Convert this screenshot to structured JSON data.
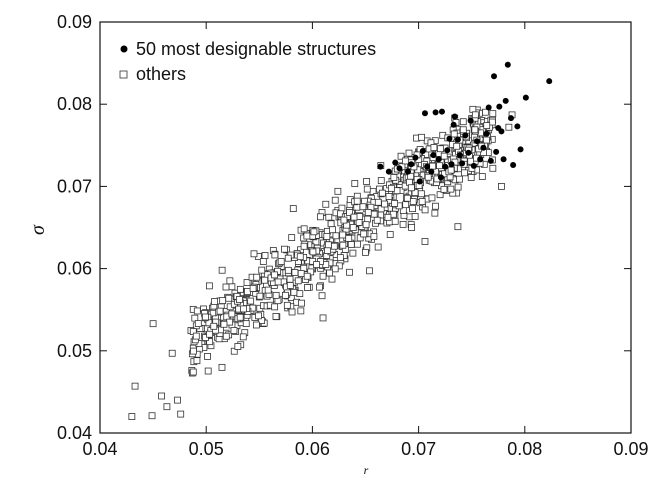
{
  "chart_data": {
    "type": "scatter",
    "xlabel": "r",
    "ylabel": "σ",
    "xlim": [
      0.04,
      0.09
    ],
    "ylim": [
      0.04,
      0.09
    ],
    "x_ticks": [
      "0.04",
      "0.05",
      "0.06",
      "0.07",
      "0.08",
      "0.09"
    ],
    "y_ticks": [
      "0.04",
      "0.05",
      "0.06",
      "0.07",
      "0.08",
      "0.09"
    ],
    "grid": false,
    "legend": {
      "placement": "top-left"
    },
    "series": [
      {
        "name": "50 most designable structures",
        "marker": "filled-circle",
        "color": "#000000",
        "points": [
          [
            0.0664,
            0.0724
          ],
          [
            0.0672,
            0.0718
          ],
          [
            0.0678,
            0.0729
          ],
          [
            0.0682,
            0.0722
          ],
          [
            0.069,
            0.0718
          ],
          [
            0.0693,
            0.0727
          ],
          [
            0.0697,
            0.0735
          ],
          [
            0.0701,
            0.0706
          ],
          [
            0.0704,
            0.0743
          ],
          [
            0.0706,
            0.0789
          ],
          [
            0.0708,
            0.0724
          ],
          [
            0.0712,
            0.0718
          ],
          [
            0.0714,
            0.0738
          ],
          [
            0.0716,
            0.079
          ],
          [
            0.0719,
            0.0733
          ],
          [
            0.0721,
            0.0711
          ],
          [
            0.0722,
            0.0791
          ],
          [
            0.0725,
            0.0724
          ],
          [
            0.0727,
            0.0744
          ],
          [
            0.0729,
            0.0758
          ],
          [
            0.0731,
            0.0727
          ],
          [
            0.0733,
            0.0775
          ],
          [
            0.0734,
            0.0785
          ],
          [
            0.0737,
            0.0757
          ],
          [
            0.0739,
            0.0738
          ],
          [
            0.0741,
            0.0728
          ],
          [
            0.0744,
            0.0762
          ],
          [
            0.0747,
            0.0741
          ],
          [
            0.0749,
            0.078
          ],
          [
            0.0752,
            0.0725
          ],
          [
            0.0755,
            0.0755
          ],
          [
            0.0758,
            0.0733
          ],
          [
            0.0761,
            0.0747
          ],
          [
            0.0764,
            0.0764
          ],
          [
            0.0766,
            0.0796
          ],
          [
            0.0768,
            0.0731
          ],
          [
            0.0771,
            0.0834
          ],
          [
            0.0773,
            0.0742
          ],
          [
            0.0775,
            0.0771
          ],
          [
            0.0776,
            0.0797
          ],
          [
            0.0778,
            0.0767
          ],
          [
            0.078,
            0.0733
          ],
          [
            0.0782,
            0.0804
          ],
          [
            0.0784,
            0.0848
          ],
          [
            0.0787,
            0.0783
          ],
          [
            0.0789,
            0.0726
          ],
          [
            0.0793,
            0.0773
          ],
          [
            0.0796,
            0.0745
          ],
          [
            0.0801,
            0.0808
          ],
          [
            0.0823,
            0.0828
          ]
        ]
      },
      {
        "name": "others",
        "marker": "open-square",
        "color": "#333333",
        "generated_count": 900,
        "outliers": [
          [
            0.043,
            0.042
          ],
          [
            0.0433,
            0.0457
          ],
          [
            0.0449,
            0.0421
          ],
          [
            0.045,
            0.0533
          ],
          [
            0.0458,
            0.0445
          ],
          [
            0.0463,
            0.0432
          ],
          [
            0.0468,
            0.0497
          ],
          [
            0.0473,
            0.044
          ],
          [
            0.0476,
            0.0423
          ],
          [
            0.0503,
            0.0579
          ],
          [
            0.0515,
            0.0598
          ],
          [
            0.0545,
            0.0618
          ],
          [
            0.0582,
            0.0673
          ],
          [
            0.061,
            0.054
          ],
          [
            0.0624,
            0.0694
          ],
          [
            0.0651,
            0.0706
          ],
          [
            0.0706,
            0.0633
          ],
          [
            0.0737,
            0.0651
          ],
          [
            0.076,
            0.0712
          ],
          [
            0.0778,
            0.07
          ],
          [
            0.0785,
            0.0772
          ],
          [
            0.0788,
            0.0787
          ]
        ]
      }
    ]
  }
}
